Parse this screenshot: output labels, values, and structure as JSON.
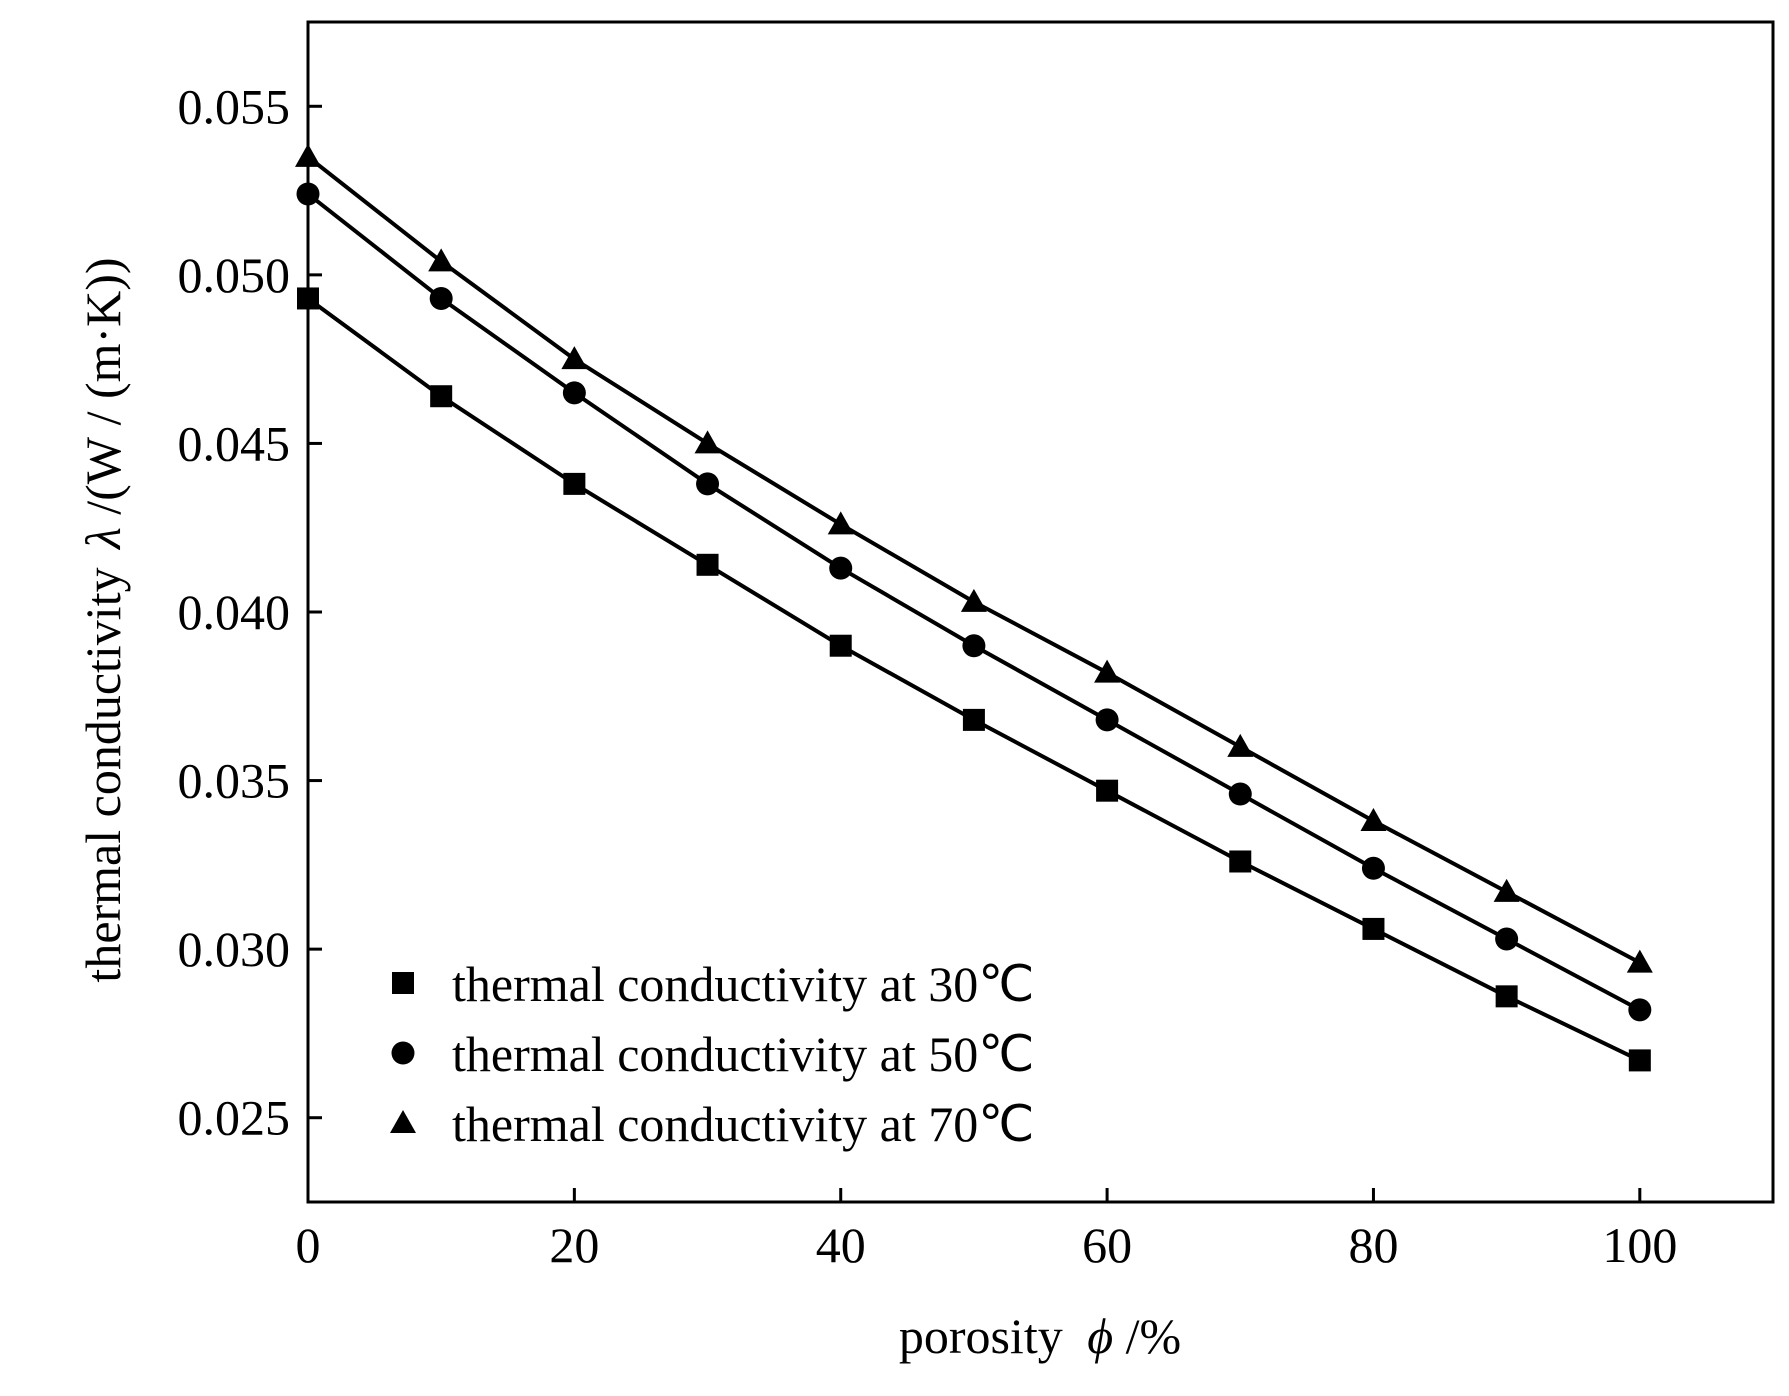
{
  "chart_data": {
    "type": "line",
    "title": "",
    "xlabel": "porosity",
    "xlabel_symbol": "ϕ",
    "xlabel_unit": "/%",
    "ylabel": "thermal conductivity",
    "ylabel_symbol": "λ",
    "ylabel_unit": "/(W / (m·K))",
    "xlim": [
      0,
      110
    ],
    "ylim": [
      0.0225,
      0.0575
    ],
    "xticks": [
      0,
      20,
      40,
      60,
      80,
      100
    ],
    "xtick_labels": [
      "0",
      "20",
      "40",
      "60",
      "80",
      "100"
    ],
    "yticks": [
      0.025,
      0.03,
      0.035,
      0.04,
      0.045,
      0.05,
      0.055
    ],
    "ytick_labels": [
      "0.025",
      "0.030",
      "0.035",
      "0.040",
      "0.045",
      "0.050",
      "0.055"
    ],
    "grid": false,
    "legend_position": "bottom-left",
    "x": [
      0,
      10,
      20,
      30,
      40,
      50,
      60,
      70,
      80,
      90,
      100
    ],
    "series": [
      {
        "name": "thermal conductivity at 30℃",
        "marker": "square",
        "color": "#000000",
        "values": [
          0.0493,
          0.0464,
          0.0438,
          0.0414,
          0.039,
          0.0368,
          0.0347,
          0.0326,
          0.0306,
          0.0286,
          0.0267
        ]
      },
      {
        "name": "thermal conductivity at 50℃",
        "marker": "circle",
        "color": "#000000",
        "values": [
          0.0524,
          0.0493,
          0.0465,
          0.0438,
          0.0413,
          0.039,
          0.0368,
          0.0346,
          0.0324,
          0.0303,
          0.0282
        ]
      },
      {
        "name": "thermal conductivity at 70℃",
        "marker": "triangle",
        "color": "#000000",
        "values": [
          0.0535,
          0.0504,
          0.0475,
          0.045,
          0.0426,
          0.0403,
          0.0382,
          0.036,
          0.0338,
          0.0317,
          0.0296
        ]
      }
    ]
  }
}
